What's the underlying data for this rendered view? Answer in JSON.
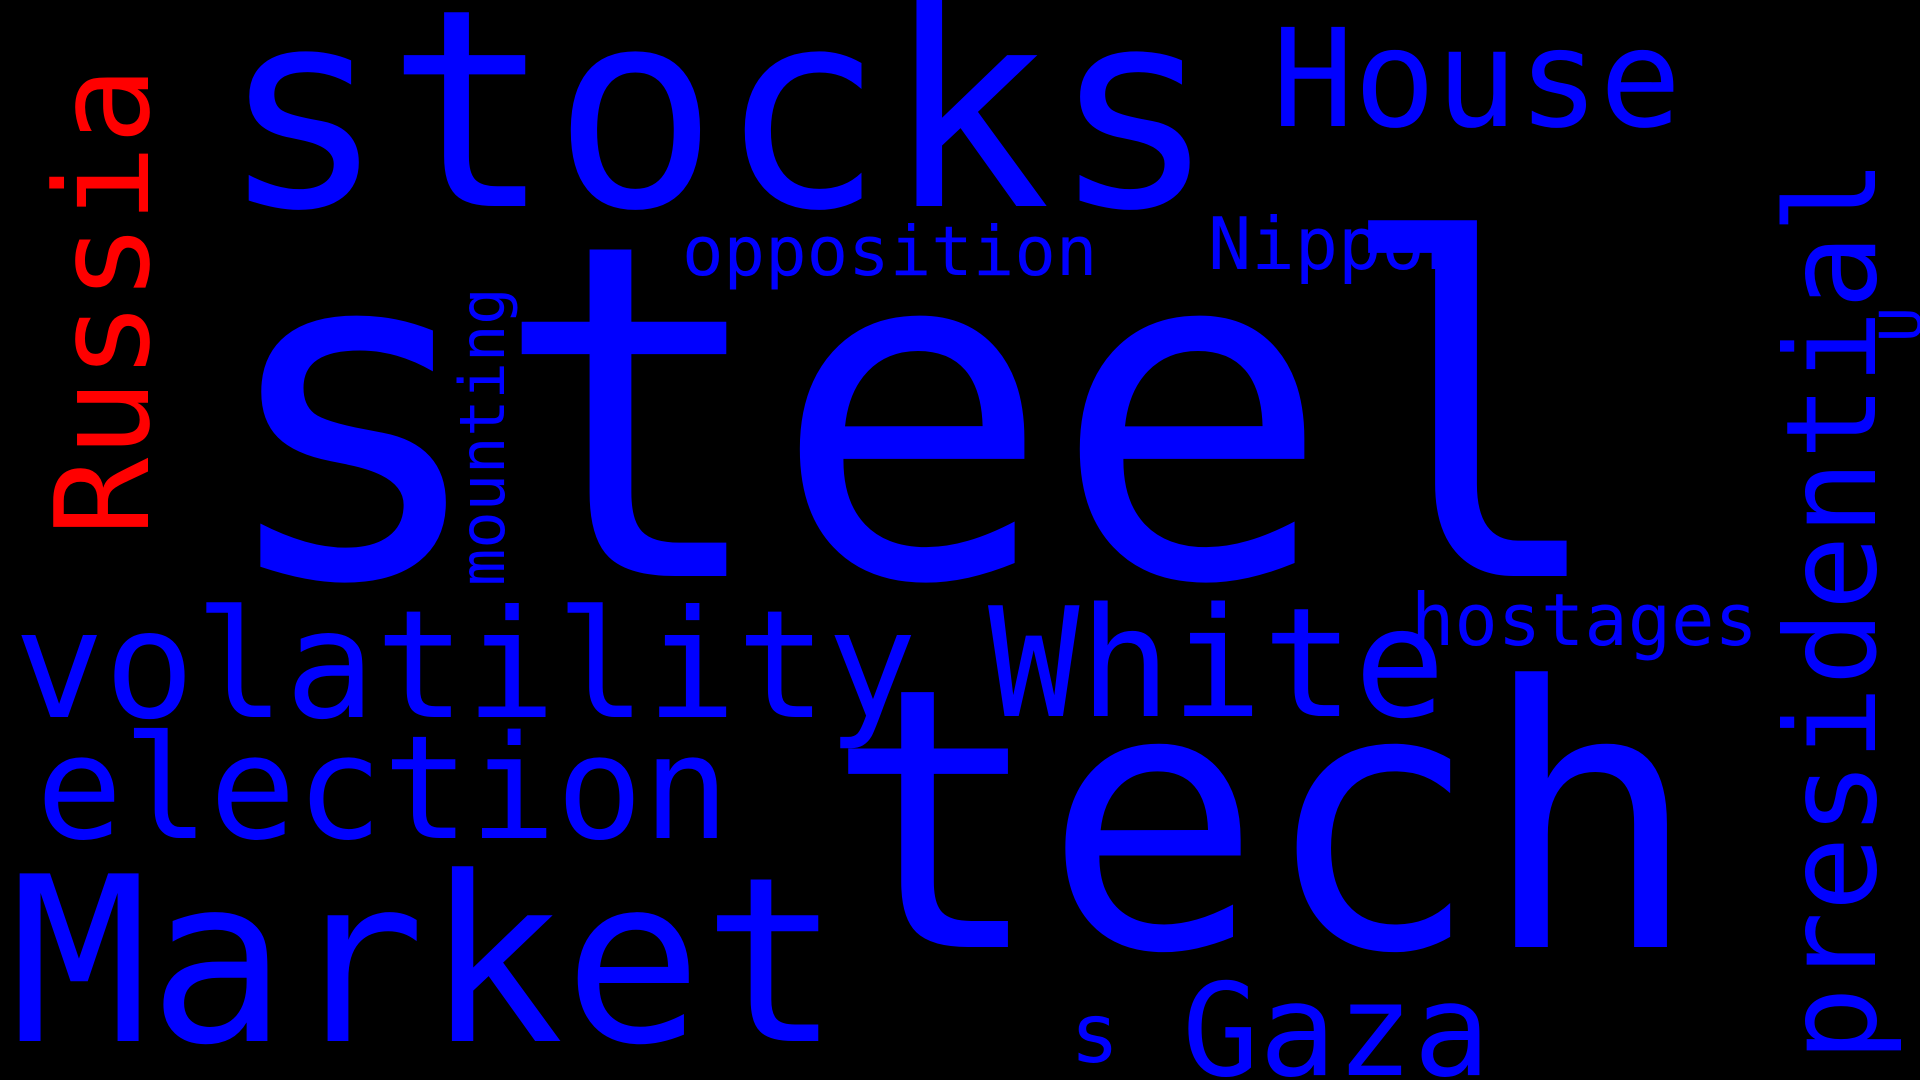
{
  "background_color": "#000000",
  "words": [
    {
      "id": "steel",
      "text": "steel",
      "color": "#0000FF",
      "vertical": false
    },
    {
      "id": "tech",
      "text": "tech",
      "color": "#0000FF",
      "vertical": false
    },
    {
      "id": "stocks",
      "text": "stocks",
      "color": "#0000FF",
      "vertical": false
    },
    {
      "id": "market",
      "text": "Market",
      "color": "#0000FF",
      "vertical": false
    },
    {
      "id": "volatility",
      "text": "volatility",
      "color": "#0000FF",
      "vertical": false
    },
    {
      "id": "white",
      "text": "White",
      "color": "#0000FF",
      "vertical": false
    },
    {
      "id": "election",
      "text": "election",
      "color": "#0000FF",
      "vertical": false
    },
    {
      "id": "house",
      "text": "House",
      "color": "#0000FF",
      "vertical": false
    },
    {
      "id": "gaza",
      "text": "Gaza",
      "color": "#0000FF",
      "vertical": false
    },
    {
      "id": "opposition",
      "text": "opposition",
      "color": "#0000FF",
      "vertical": false
    },
    {
      "id": "nippon",
      "text": "Nippon",
      "color": "#0000FF",
      "vertical": false
    },
    {
      "id": "hostages",
      "text": "hostages",
      "color": "#0000FF",
      "vertical": false
    },
    {
      "id": "s",
      "text": "s",
      "color": "#0000FF",
      "vertical": false
    },
    {
      "id": "russia",
      "text": "Russia",
      "color": "#FF0000",
      "vertical": true
    },
    {
      "id": "presidential",
      "text": "presidential",
      "color": "#0000FF",
      "vertical": true
    },
    {
      "id": "mounting",
      "text": "mounting",
      "color": "#0000FF",
      "vertical": true
    },
    {
      "id": "u",
      "text": "U",
      "color": "#0000FF",
      "vertical": true
    }
  ]
}
